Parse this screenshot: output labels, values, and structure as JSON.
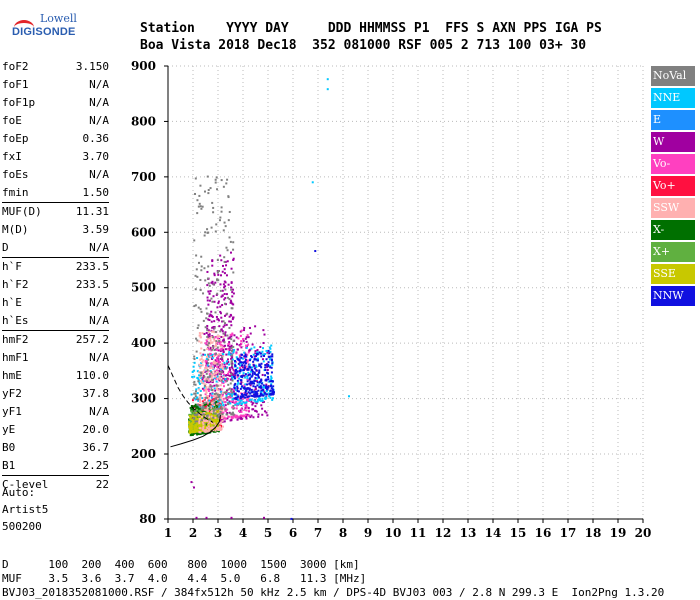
{
  "logo": {
    "line1": "Lowell",
    "line2": "DIGISONDE"
  },
  "header": {
    "line1": "Station    YYYY DAY     DDD HHMMSS P1  FFS S AXN PPS IGA PS",
    "line2": "Boa Vista 2018 Dec18  352 081000 RSF 005 2 713 100 03+ 30"
  },
  "params": [
    [
      {
        "name": "foF2",
        "value": "3.150"
      },
      {
        "name": "foF1",
        "value": "N/A"
      },
      {
        "name": "foF1p",
        "value": "N/A"
      },
      {
        "name": "foE",
        "value": "N/A"
      },
      {
        "name": "foEp",
        "value": "0.36"
      },
      {
        "name": "fxI",
        "value": "3.70"
      },
      {
        "name": "foEs",
        "value": "N/A"
      },
      {
        "name": "fmin",
        "value": "1.50"
      }
    ],
    [
      {
        "name": "MUF(D)",
        "value": "11.31"
      },
      {
        "name": "M(D)",
        "value": "3.59"
      },
      {
        "name": "D",
        "value": "N/A"
      }
    ],
    [
      {
        "name": "h`F",
        "value": "233.5"
      },
      {
        "name": "h`F2",
        "value": "233.5"
      },
      {
        "name": "h`E",
        "value": "N/A"
      },
      {
        "name": "h`Es",
        "value": "N/A"
      }
    ],
    [
      {
        "name": "hmF2",
        "value": "257.2"
      },
      {
        "name": "hmF1",
        "value": "N/A"
      },
      {
        "name": "hmE",
        "value": "110.0"
      },
      {
        "name": "yF2",
        "value": "37.8"
      },
      {
        "name": "yF1",
        "value": "N/A"
      },
      {
        "name": "yE",
        "value": "20.0"
      },
      {
        "name": "B0",
        "value": "36.7"
      },
      {
        "name": "B1",
        "value": "2.25"
      }
    ],
    [
      {
        "name": "C-level",
        "value": "22"
      }
    ]
  ],
  "auto": {
    "line1": "Auto:",
    "line2": "Artist5",
    "line3": "500200"
  },
  "legend": [
    {
      "label": "NoVal",
      "bg": "#808080",
      "fg": "#ffffff"
    },
    {
      "label": "NNE",
      "bg": "#00c8ff",
      "fg": "#ffffff"
    },
    {
      "label": "E",
      "bg": "#1e90ff",
      "fg": "#ffffff"
    },
    {
      "label": "W",
      "bg": "#a000a0",
      "fg": "#ffffff"
    },
    {
      "label": "Vo-",
      "bg": "#ff40c0",
      "fg": "#ffffff"
    },
    {
      "label": "Vo+",
      "bg": "#ff1040",
      "fg": "#ffffff"
    },
    {
      "label": "SSW",
      "bg": "#ffb0b0",
      "fg": "#ffffff"
    },
    {
      "label": "X-",
      "bg": "#007000",
      "fg": "#ffffff"
    },
    {
      "label": "X+",
      "bg": "#60b040",
      "fg": "#ffffff"
    },
    {
      "label": "SSE",
      "bg": "#c8c800",
      "fg": "#ffffff"
    },
    {
      "label": "NNW",
      "bg": "#1010e0",
      "fg": "#ffffff"
    }
  ],
  "footer": {
    "line1": "D      100  200  400  600   800  1000  1500  3000 [km]",
    "line2": "MUF    3.5  3.6  3.7  4.0   4.4  5.0   6.8   11.3 [MHz]",
    "line3": "BVJ03_2018352081000.RSF / 384fx512h 50 kHz 2.5 km / DPS-4D BVJ03 003 / 2.8 N 299.3 E  Ion2Png 1.3.20"
  },
  "chart_data": {
    "type": "scatter",
    "xlim": [
      1,
      20
    ],
    "ylim": [
      80,
      900
    ],
    "x_ticks": [
      1,
      2,
      3,
      4,
      5,
      6,
      7,
      8,
      9,
      10,
      11,
      12,
      13,
      14,
      15,
      16,
      17,
      18,
      19,
      20
    ],
    "y_ticks": [
      80,
      200,
      300,
      400,
      500,
      600,
      700,
      800,
      900
    ],
    "grid": true,
    "axis_color": "#000000",
    "grid_color": "#bbbbbb",
    "echo_clusters": [
      {
        "mode": "W",
        "color": "#a000a0",
        "fmin": 2.3,
        "fmax": 5.0,
        "hmin": 255,
        "hmax": 420
      },
      {
        "mode": "W",
        "color": "#a000a0",
        "fmin": 2.5,
        "fmax": 3.6,
        "hmin": 330,
        "hmax": 560
      },
      {
        "mode": "Vo-",
        "color": "#ff40c0",
        "fmin": 2.4,
        "fmax": 4.2,
        "hmin": 260,
        "hmax": 420
      },
      {
        "mode": "Vo+",
        "color": "#ff1040",
        "fmin": 1.9,
        "fmax": 3.1,
        "hmin": 238,
        "hmax": 300
      },
      {
        "mode": "NNE",
        "color": "#00c8ff",
        "fmin": 1.9,
        "fmax": 5.2,
        "hmin": 280,
        "hmax": 380
      },
      {
        "mode": "NNW",
        "color": "#1010e0",
        "fmin": 3.6,
        "fmax": 5.2,
        "hmin": 300,
        "hmax": 380
      },
      {
        "mode": "X-",
        "color": "#007000",
        "fmin": 1.8,
        "fmax": 3.0,
        "hmin": 235,
        "hmax": 290
      },
      {
        "mode": "X+",
        "color": "#60b040",
        "fmin": 1.8,
        "fmax": 3.0,
        "hmin": 240,
        "hmax": 280
      },
      {
        "mode": "SSE",
        "color": "#c8c800",
        "fmin": 1.8,
        "fmax": 3.0,
        "hmin": 240,
        "hmax": 275
      },
      {
        "mode": "SSW",
        "color": "#ffb0b0",
        "fmin": 2.2,
        "fmax": 3.2,
        "hmin": 240,
        "hmax": 420
      },
      {
        "mode": "NoVal",
        "color": "#808080",
        "fmin": 2.0,
        "fmax": 3.6,
        "hmin": 260,
        "hmax": 700
      }
    ],
    "isolated_echoes": [
      {
        "f": 7.35,
        "h": 878,
        "color": "#00c8ff"
      },
      {
        "f": 7.35,
        "h": 860,
        "color": "#00c8ff"
      },
      {
        "f": 6.75,
        "h": 692,
        "color": "#00c8ff"
      },
      {
        "f": 6.85,
        "h": 568,
        "color": "#1010e0"
      },
      {
        "f": 8.2,
        "h": 306,
        "color": "#00c8ff"
      },
      {
        "f": 1.9,
        "h": 150,
        "color": "#a000a0"
      },
      {
        "f": 2.0,
        "h": 140,
        "color": "#a000a0"
      },
      {
        "f": 2.1,
        "h": 84,
        "color": "#a000a0"
      },
      {
        "f": 2.5,
        "h": 84,
        "color": "#a000a0"
      },
      {
        "f": 3.5,
        "h": 84,
        "color": "#a000a0"
      },
      {
        "f": 4.8,
        "h": 84,
        "color": "#a000a0"
      },
      {
        "f": 5.9,
        "h": 82,
        "color": "#1010e0"
      }
    ],
    "trace_solid": [
      [
        1.1,
        213
      ],
      [
        1.5,
        218
      ],
      [
        2.0,
        225
      ],
      [
        2.4,
        232
      ],
      [
        2.7,
        240
      ],
      [
        2.9,
        248
      ],
      [
        3.05,
        258
      ],
      [
        3.1,
        270
      ]
    ],
    "trace_dashed": [
      [
        1.0,
        360
      ],
      [
        1.2,
        340
      ],
      [
        1.4,
        320
      ],
      [
        1.6,
        305
      ],
      [
        1.8,
        293
      ],
      [
        2.0,
        283
      ],
      [
        2.2,
        275
      ],
      [
        2.5,
        265
      ],
      [
        2.8,
        257
      ]
    ]
  }
}
